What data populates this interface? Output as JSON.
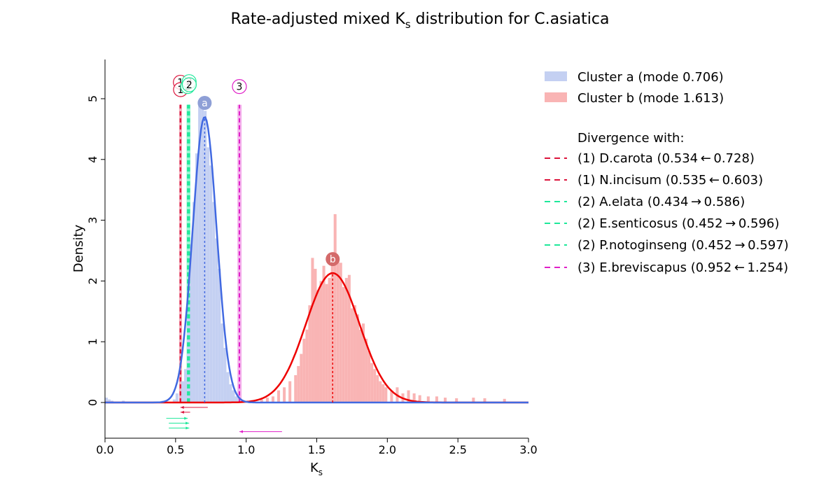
{
  "chart_data": {
    "type": "histogram",
    "title": "Rate-adjusted mixed K",
    "title_sub": "s",
    "title_rest": " distribution for C.asiatica",
    "xlabel": "K",
    "xlabel_sub": "s",
    "ylabel": "Density",
    "xlim": [
      0,
      3
    ],
    "ylim": [
      -0.6,
      5.65
    ],
    "xticks": [
      "0.0",
      "0.5",
      "1.0",
      "1.5",
      "2.0",
      "2.5",
      "3.0"
    ],
    "xtick_values": [
      0,
      0.5,
      1.0,
      1.5,
      2.0,
      2.5,
      3.0
    ],
    "yticks": [
      "0",
      "1",
      "2",
      "3",
      "4",
      "5"
    ],
    "ytick_values": [
      0,
      1,
      2,
      3,
      4,
      5
    ],
    "clusters": [
      {
        "id": "a",
        "label": "Cluster a (mode 0.706)",
        "mode": 0.706,
        "sigma": 0.085,
        "peak": 4.7,
        "color": "#4169e1",
        "bar_color": "#c4d0f2",
        "marker_color": "#8e9fd6"
      },
      {
        "id": "b",
        "label": "Cluster b (mode 1.613)",
        "mode": 1.613,
        "sigma": 0.19,
        "peak": 2.13,
        "color": "#ee0000",
        "bar_color": "#f9b4b4",
        "marker_color": "#d46a6a"
      }
    ],
    "hist_a": [
      [
        0.0,
        0.08
      ],
      [
        0.02,
        0.05
      ],
      [
        0.04,
        0.03
      ],
      [
        0.12,
        0.03
      ],
      [
        0.4,
        0.03
      ],
      [
        0.48,
        0.05
      ],
      [
        0.5,
        0.15
      ],
      [
        0.54,
        0.35
      ],
      [
        0.56,
        0.55
      ],
      [
        0.58,
        1.4
      ],
      [
        0.6,
        2.6
      ],
      [
        0.62,
        3.3
      ],
      [
        0.64,
        4.1
      ],
      [
        0.66,
        4.9
      ],
      [
        0.68,
        4.95
      ],
      [
        0.7,
        4.8
      ],
      [
        0.72,
        4.2
      ],
      [
        0.74,
        3.9
      ],
      [
        0.76,
        3.3
      ],
      [
        0.78,
        2.7
      ],
      [
        0.8,
        2.2
      ],
      [
        0.82,
        1.3
      ],
      [
        0.84,
        0.9
      ],
      [
        0.86,
        0.5
      ],
      [
        0.88,
        0.3
      ],
      [
        0.9,
        0.2
      ],
      [
        0.92,
        0.1
      ],
      [
        0.94,
        0.05
      ]
    ],
    "hist_b": [
      [
        1.1,
        0.05
      ],
      [
        1.14,
        0.08
      ],
      [
        1.18,
        0.1
      ],
      [
        1.22,
        0.2
      ],
      [
        1.26,
        0.25
      ],
      [
        1.3,
        0.35
      ],
      [
        1.34,
        0.45
      ],
      [
        1.36,
        0.6
      ],
      [
        1.38,
        0.8
      ],
      [
        1.4,
        1.05
      ],
      [
        1.42,
        1.2
      ],
      [
        1.44,
        1.6
      ],
      [
        1.46,
        2.38
      ],
      [
        1.48,
        2.2
      ],
      [
        1.5,
        1.85
      ],
      [
        1.52,
        2.0
      ],
      [
        1.54,
        2.25
      ],
      [
        1.56,
        1.95
      ],
      [
        1.58,
        2.05
      ],
      [
        1.6,
        2.25
      ],
      [
        1.62,
        3.1
      ],
      [
        1.64,
        2.4
      ],
      [
        1.66,
        2.3
      ],
      [
        1.68,
        1.9
      ],
      [
        1.7,
        2.05
      ],
      [
        1.72,
        2.1
      ],
      [
        1.74,
        1.55
      ],
      [
        1.76,
        1.6
      ],
      [
        1.78,
        1.45
      ],
      [
        1.8,
        1.2
      ],
      [
        1.82,
        1.3
      ],
      [
        1.84,
        1.05
      ],
      [
        1.86,
        0.85
      ],
      [
        1.88,
        0.65
      ],
      [
        1.9,
        0.55
      ],
      [
        1.92,
        0.45
      ],
      [
        1.94,
        0.35
      ],
      [
        1.96,
        0.3
      ],
      [
        1.98,
        0.25
      ],
      [
        2.02,
        0.2
      ],
      [
        2.06,
        0.25
      ],
      [
        2.1,
        0.15
      ],
      [
        2.14,
        0.2
      ],
      [
        2.18,
        0.15
      ],
      [
        2.22,
        0.12
      ],
      [
        2.28,
        0.1
      ],
      [
        2.34,
        0.1
      ],
      [
        2.4,
        0.08
      ],
      [
        2.48,
        0.07
      ],
      [
        2.6,
        0.08
      ],
      [
        2.68,
        0.07
      ],
      [
        2.82,
        0.06
      ]
    ],
    "divergence_header": "Divergence with:",
    "divergences": [
      {
        "group": "1",
        "label": "(1) D.carota (0.534 ← 0.728)",
        "value": 0.534,
        "orig": 0.728,
        "color": "#dc143c"
      },
      {
        "group": "1",
        "label": "(1) N.incisum (0.535 ← 0.603)",
        "value": 0.535,
        "orig": 0.603,
        "color": "#dc143c"
      },
      {
        "group": "2",
        "label": "(2) A.elata (0.434 → 0.586)",
        "value": 0.586,
        "orig": 0.434,
        "color": "#1ee89a"
      },
      {
        "group": "2",
        "label": "(2) E.senticosus (0.452 → 0.596)",
        "value": 0.596,
        "orig": 0.452,
        "color": "#1ee89a"
      },
      {
        "group": "2",
        "label": "(2) P.notoginseng (0.452 → 0.597)",
        "value": 0.597,
        "orig": 0.452,
        "color": "#1ee89a"
      },
      {
        "group": "3",
        "label": "(3) E.breviscapus (0.952 ← 1.254)",
        "value": 0.952,
        "orig": 1.254,
        "color": "#e020c8"
      }
    ],
    "group_markers": [
      {
        "label": "1",
        "value": 0.534,
        "color": "#dc143c"
      },
      {
        "label": "1",
        "value": 0.535,
        "color": "#dc143c"
      },
      {
        "label": "2",
        "value": 0.586,
        "color": "#1ee89a"
      },
      {
        "label": "2",
        "value": 0.596,
        "color": "#1ee89a"
      },
      {
        "label": "2",
        "value": 0.597,
        "color": "#1ee89a"
      },
      {
        "label": "3",
        "value": 0.952,
        "color": "#e020c8"
      }
    ]
  }
}
